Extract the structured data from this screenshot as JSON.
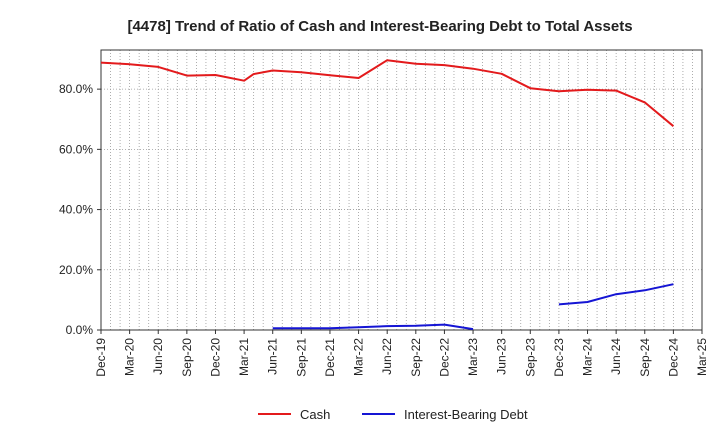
{
  "chart_data": {
    "type": "line",
    "title": "[4478]  Trend of Ratio of Cash and Interest-Bearing Debt to Total Assets",
    "xlabel": "",
    "ylabel": "",
    "x_ticks": [
      "Dec-19",
      "Mar-20",
      "Jun-20",
      "Sep-20",
      "Dec-20",
      "Mar-21",
      "Jun-21",
      "Sep-21",
      "Dec-21",
      "Mar-22",
      "Jun-22",
      "Sep-22",
      "Dec-22",
      "Mar-23",
      "Jun-23",
      "Sep-23",
      "Dec-23",
      "Mar-24",
      "Jun-24",
      "Sep-24",
      "Dec-24",
      "Mar-25"
    ],
    "y_ticks": [
      "0.0%",
      "20.0%",
      "40.0%",
      "60.0%",
      "80.0%"
    ],
    "ylim": [
      0,
      93
    ],
    "y_tick_values": [
      0,
      20,
      40,
      60,
      80
    ],
    "grid": true,
    "legend_position": "bottom",
    "series": [
      {
        "name": "Cash",
        "color": "#e31a1c",
        "points": [
          {
            "month": 0,
            "value": 88.8
          },
          {
            "month": 3,
            "value": 88.3
          },
          {
            "month": 6,
            "value": 87.4
          },
          {
            "month": 9,
            "value": 84.5
          },
          {
            "month": 12,
            "value": 84.7
          },
          {
            "month": 15,
            "value": 82.8
          },
          {
            "month": 16,
            "value": 85.0
          },
          {
            "month": 18,
            "value": 86.2
          },
          {
            "month": 21,
            "value": 85.6
          },
          {
            "month": 24,
            "value": 84.6
          },
          {
            "month": 27,
            "value": 83.7
          },
          {
            "month": 30,
            "value": 89.6
          },
          {
            "month": 33,
            "value": 88.4
          },
          {
            "month": 36,
            "value": 88.0
          },
          {
            "month": 39,
            "value": 86.8
          },
          {
            "month": 42,
            "value": 85.1
          },
          {
            "month": 45,
            "value": 80.3
          },
          {
            "month": 48,
            "value": 79.3
          },
          {
            "month": 51,
            "value": 79.8
          },
          {
            "month": 54,
            "value": 79.5
          },
          {
            "month": 57,
            "value": 75.6
          },
          {
            "month": 60,
            "value": 67.7
          }
        ]
      },
      {
        "name": "Interest-Bearing Debt",
        "color": "#1515d4",
        "segments": [
          [
            {
              "month": 18,
              "value": 0.6
            },
            {
              "month": 21,
              "value": 0.6
            },
            {
              "month": 24,
              "value": 0.6
            },
            {
              "month": 27,
              "value": 0.9
            },
            {
              "month": 30,
              "value": 1.3
            },
            {
              "month": 33,
              "value": 1.4
            },
            {
              "month": 36,
              "value": 1.8
            },
            {
              "month": 39,
              "value": 0.3
            }
          ],
          [
            {
              "month": 48,
              "value": 8.5
            },
            {
              "month": 51,
              "value": 9.3
            },
            {
              "month": 54,
              "value": 11.9
            },
            {
              "month": 57,
              "value": 13.2
            },
            {
              "month": 60,
              "value": 15.2
            }
          ]
        ]
      }
    ]
  }
}
